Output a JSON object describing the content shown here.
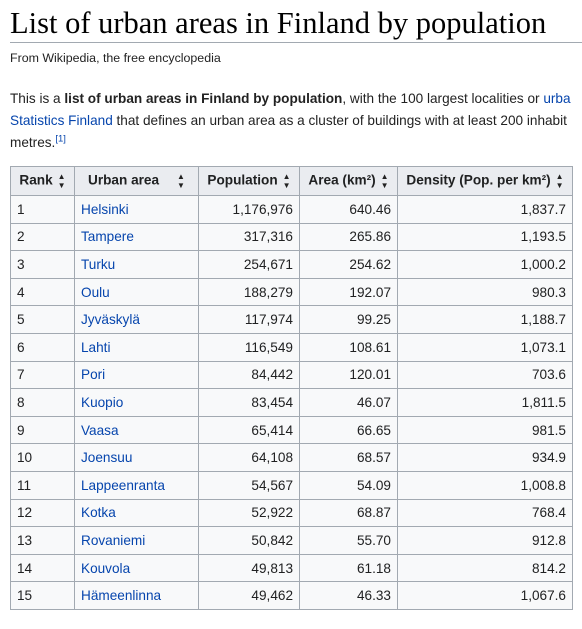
{
  "page": {
    "title": "List of urban areas in Finland by population",
    "site_sub": "From Wikipedia, the free encyclopedia",
    "intro": {
      "part1": "This is a ",
      "bold": "list of urban areas in Finland by population",
      "part2": ", with the 100 largest localities or ",
      "link1": "urba",
      "link2": "Statistics Finland",
      "part3": " that defines an urban area as a cluster of buildings with at least 200 inhabit",
      "part4": "metres.",
      "ref": "[1]"
    }
  },
  "table": {
    "headers": {
      "rank": "Rank",
      "urban_area": "Urban area",
      "population": "Population",
      "area": "Area (km²)",
      "density": "Density (Pop. per km²)"
    },
    "sort_icon": "sort-arrows-icon",
    "rows": [
      {
        "rank": "1",
        "name": "Helsinki",
        "population": "1,176,976",
        "area": "640.46",
        "density": "1,837.7"
      },
      {
        "rank": "2",
        "name": "Tampere",
        "population": "317,316",
        "area": "265.86",
        "density": "1,193.5"
      },
      {
        "rank": "3",
        "name": "Turku",
        "population": "254,671",
        "area": "254.62",
        "density": "1,000.2"
      },
      {
        "rank": "4",
        "name": "Oulu",
        "population": "188,279",
        "area": "192.07",
        "density": "980.3"
      },
      {
        "rank": "5",
        "name": "Jyväskylä",
        "population": "117,974",
        "area": "99.25",
        "density": "1,188.7"
      },
      {
        "rank": "6",
        "name": "Lahti",
        "population": "116,549",
        "area": "108.61",
        "density": "1,073.1"
      },
      {
        "rank": "7",
        "name": "Pori",
        "population": "84,442",
        "area": "120.01",
        "density": "703.6"
      },
      {
        "rank": "8",
        "name": "Kuopio",
        "population": "83,454",
        "area": "46.07",
        "density": "1,811.5"
      },
      {
        "rank": "9",
        "name": "Vaasa",
        "population": "65,414",
        "area": "66.65",
        "density": "981.5"
      },
      {
        "rank": "10",
        "name": "Joensuu",
        "population": "64,108",
        "area": "68.57",
        "density": "934.9"
      },
      {
        "rank": "11",
        "name": "Lappeenranta",
        "population": "54,567",
        "area": "54.09",
        "density": "1,008.8"
      },
      {
        "rank": "12",
        "name": "Kotka",
        "population": "52,922",
        "area": "68.87",
        "density": "768.4"
      },
      {
        "rank": "13",
        "name": "Rovaniemi",
        "population": "50,842",
        "area": "55.70",
        "density": "912.8"
      },
      {
        "rank": "14",
        "name": "Kouvola",
        "population": "49,813",
        "area": "61.18",
        "density": "814.2"
      },
      {
        "rank": "15",
        "name": "Hämeenlinna",
        "population": "49,462",
        "area": "46.33",
        "density": "1,067.6"
      }
    ]
  },
  "colors": {
    "link": "#0645ad",
    "header_bg": "#eaecf0",
    "border": "#a2a9b1",
    "cell_bg": "#f8f9fa"
  }
}
